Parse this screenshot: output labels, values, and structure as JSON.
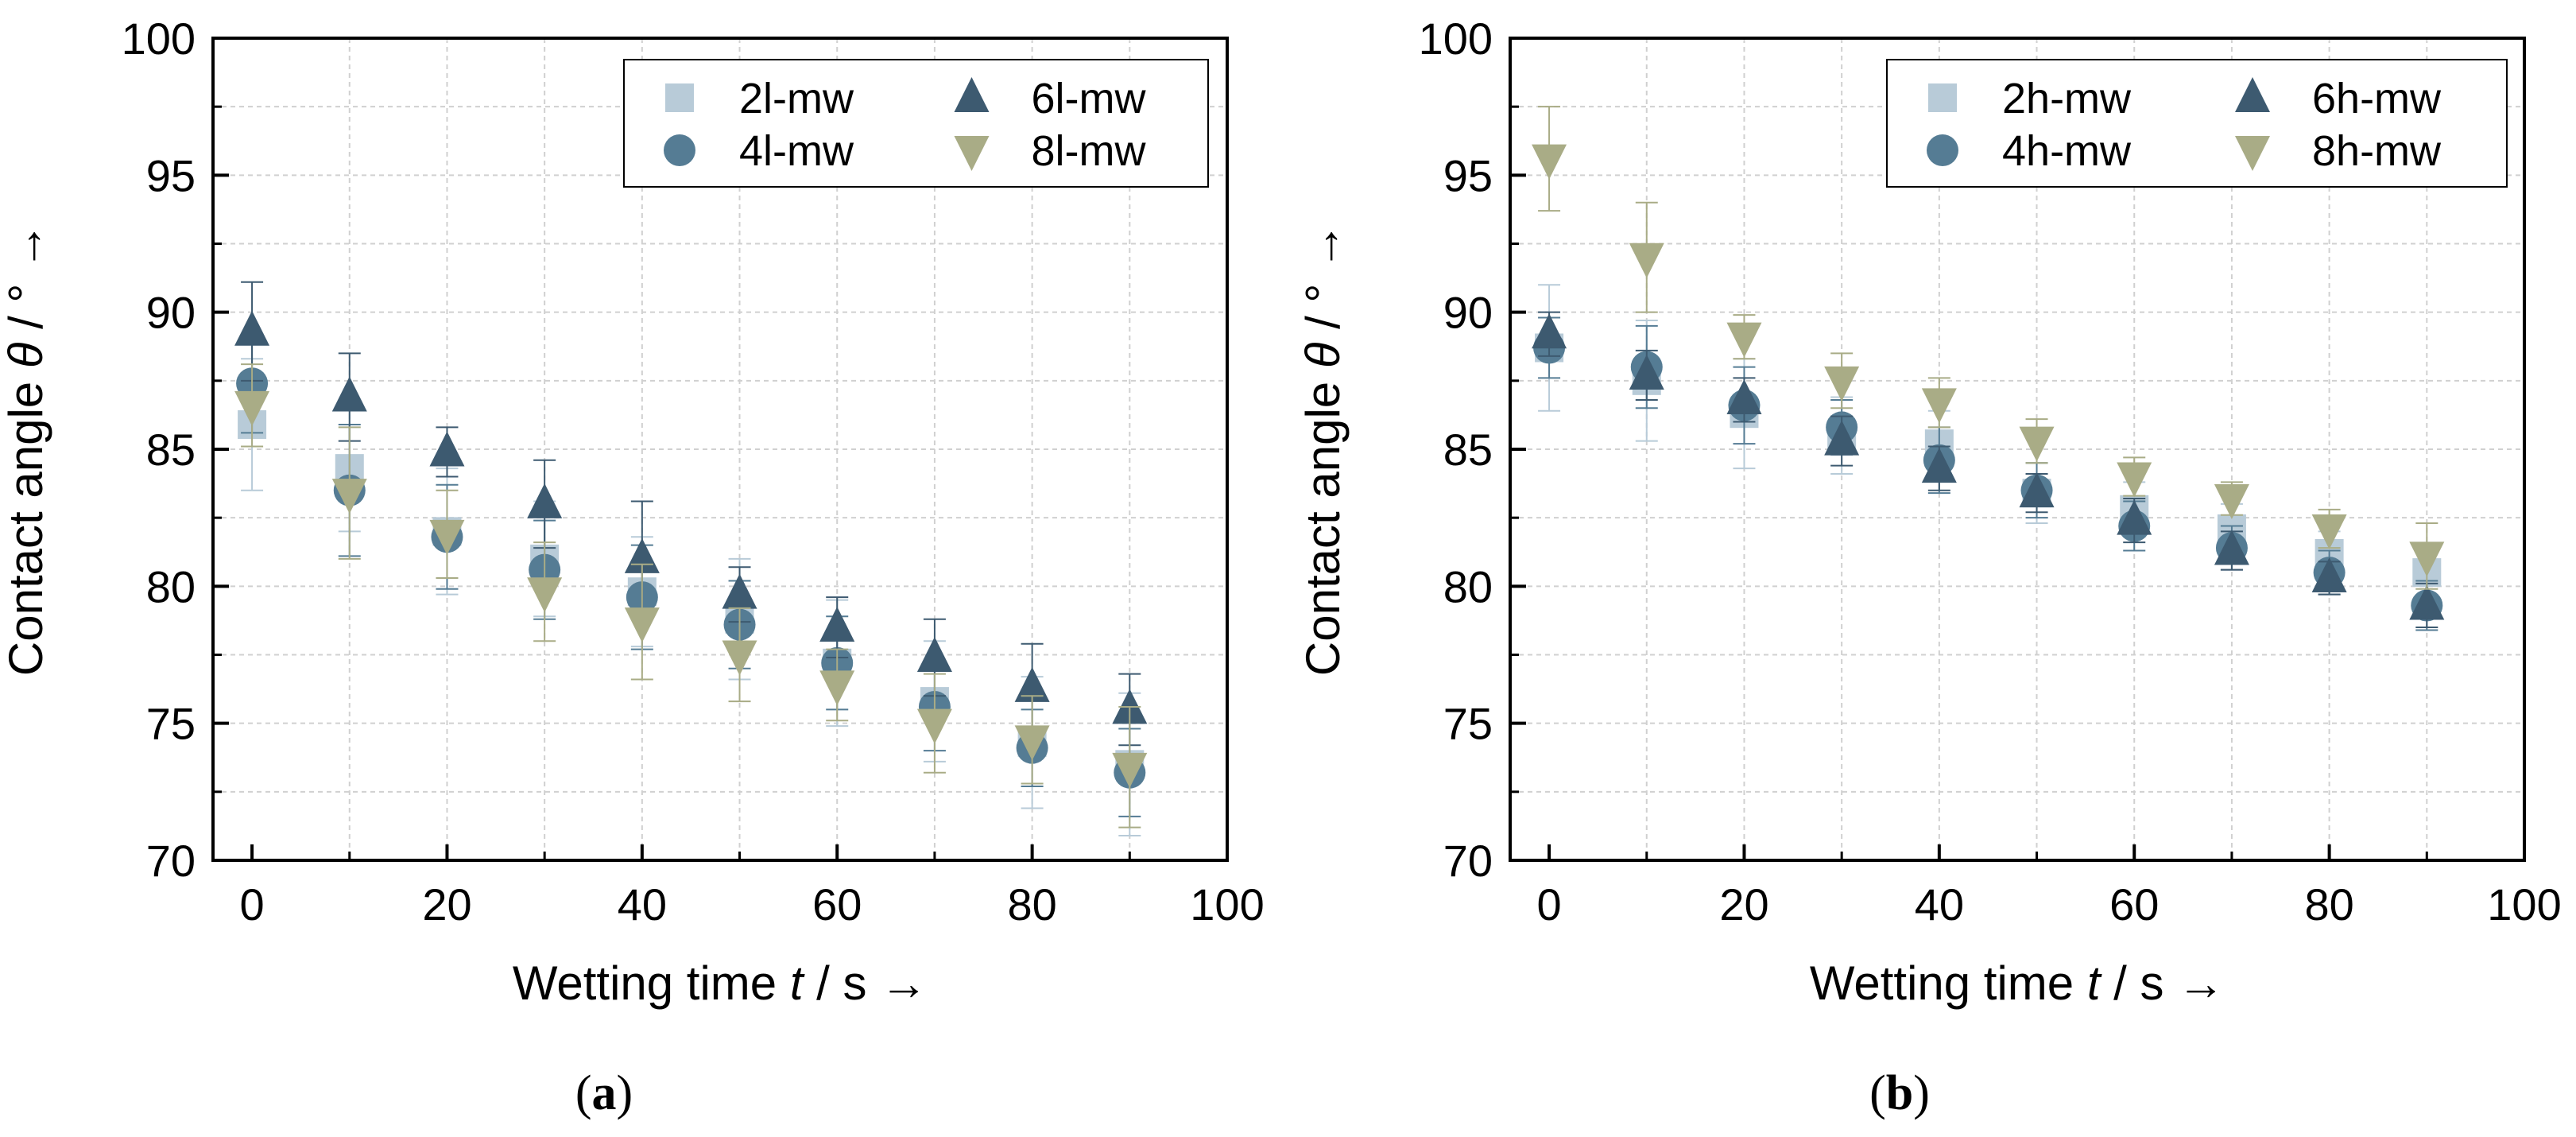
{
  "chart_data": [
    {
      "type": "scatter",
      "panel_caption": "(a)",
      "caption_letter": "a",
      "xlabel": "Wetting time",
      "xlabel_var": "t",
      "xlabel_unit": " / s →",
      "ylabel": "Contact angle",
      "ylabel_var": "θ",
      "ylabel_unit": " / ° →",
      "xlim": [
        -4,
        100
      ],
      "ylim": [
        70,
        100
      ],
      "xticks": [
        0,
        20,
        40,
        60,
        80,
        100
      ],
      "yticks": [
        70,
        75,
        80,
        85,
        90,
        95,
        100
      ],
      "grid": true,
      "legend_position": "top-right",
      "x": [
        0,
        10,
        20,
        30,
        40,
        50,
        60,
        70,
        80,
        90
      ],
      "series": [
        {
          "name": "2l-mw",
          "marker": "square",
          "color": "#b8cbd8",
          "values": [
            85.9,
            84.3,
            82.0,
            81.0,
            79.8,
            78.8,
            77.2,
            75.8,
            74.3,
            73.5
          ],
          "errors": [
            2.4,
            2.3,
            2.3,
            2.1,
            2.0,
            2.2,
            2.3,
            2.2,
            2.4,
            2.6
          ]
        },
        {
          "name": "4l-mw",
          "marker": "circle",
          "color": "#557c94",
          "values": [
            87.4,
            83.5,
            81.8,
            80.6,
            79.6,
            78.6,
            77.2,
            75.6,
            74.1,
            73.2
          ],
          "errors": [
            1.8,
            2.4,
            1.9,
            1.8,
            1.9,
            1.6,
            1.7,
            1.6,
            1.4,
            1.6
          ]
        },
        {
          "name": "6l-mw",
          "marker": "triangle-up",
          "color": "#3d5a70",
          "values": [
            89.3,
            86.9,
            84.9,
            83.0,
            81.0,
            79.7,
            78.5,
            77.4,
            76.3,
            75.5
          ],
          "errors": [
            1.8,
            1.6,
            0.9,
            1.6,
            2.1,
            1.0,
            1.1,
            1.4,
            1.6,
            1.3
          ]
        },
        {
          "name": "8l-mw",
          "marker": "triangle-down",
          "color": "#a9ac86",
          "values": [
            86.6,
            83.4,
            81.9,
            79.8,
            78.7,
            77.5,
            76.4,
            75.0,
            74.4,
            73.4
          ],
          "errors": [
            1.5,
            2.4,
            1.6,
            1.8,
            2.1,
            1.7,
            1.3,
            1.8,
            1.6,
            2.2
          ]
        }
      ]
    },
    {
      "type": "scatter",
      "panel_caption": "(b)",
      "caption_letter": "b",
      "xlabel": "Wetting time",
      "xlabel_var": "t",
      "xlabel_unit": " / s →",
      "ylabel": "Contact angle",
      "ylabel_var": "θ",
      "ylabel_unit": " / ° →",
      "xlim": [
        -4,
        100
      ],
      "ylim": [
        70,
        100
      ],
      "xticks": [
        0,
        20,
        40,
        60,
        80,
        100
      ],
      "yticks": [
        70,
        75,
        80,
        85,
        90,
        95,
        100
      ],
      "grid": true,
      "legend_position": "top-right",
      "x": [
        0,
        10,
        20,
        30,
        40,
        50,
        60,
        70,
        80,
        90
      ],
      "series": [
        {
          "name": "2h-mw",
          "marker": "square",
          "color": "#b8cbd8",
          "values": [
            88.7,
            87.5,
            86.3,
            85.5,
            85.2,
            83.4,
            82.8,
            82.1,
            81.2,
            80.5
          ],
          "errors": [
            2.3,
            2.2,
            2.0,
            1.4,
            1.2,
            1.1,
            1.0,
            0.9,
            0.8,
            0.9
          ]
        },
        {
          "name": "4h-mw",
          "marker": "circle",
          "color": "#557c94",
          "values": [
            88.7,
            88.0,
            86.6,
            85.8,
            84.6,
            83.5,
            82.2,
            81.4,
            80.5,
            79.3
          ],
          "errors": [
            1.1,
            1.5,
            1.4,
            1.0,
            1.2,
            1.0,
            0.9,
            0.8,
            0.8,
            0.9
          ]
        },
        {
          "name": "6h-mw",
          "marker": "triangle-up",
          "color": "#3d5a70",
          "values": [
            89.2,
            87.7,
            86.8,
            85.3,
            84.3,
            83.4,
            82.4,
            81.3,
            80.3,
            79.3
          ],
          "errors": [
            0.8,
            0.9,
            0.8,
            0.9,
            0.8,
            0.7,
            0.8,
            0.7,
            0.6,
            0.8
          ]
        },
        {
          "name": "8h-mw",
          "marker": "triangle-down",
          "color": "#a9ac86",
          "values": [
            95.6,
            92.0,
            89.1,
            87.5,
            86.7,
            85.3,
            84.0,
            83.2,
            82.1,
            81.1
          ],
          "errors": [
            1.9,
            2.0,
            0.8,
            1.0,
            0.9,
            0.8,
            0.7,
            0.6,
            0.7,
            1.2
          ]
        }
      ]
    }
  ]
}
